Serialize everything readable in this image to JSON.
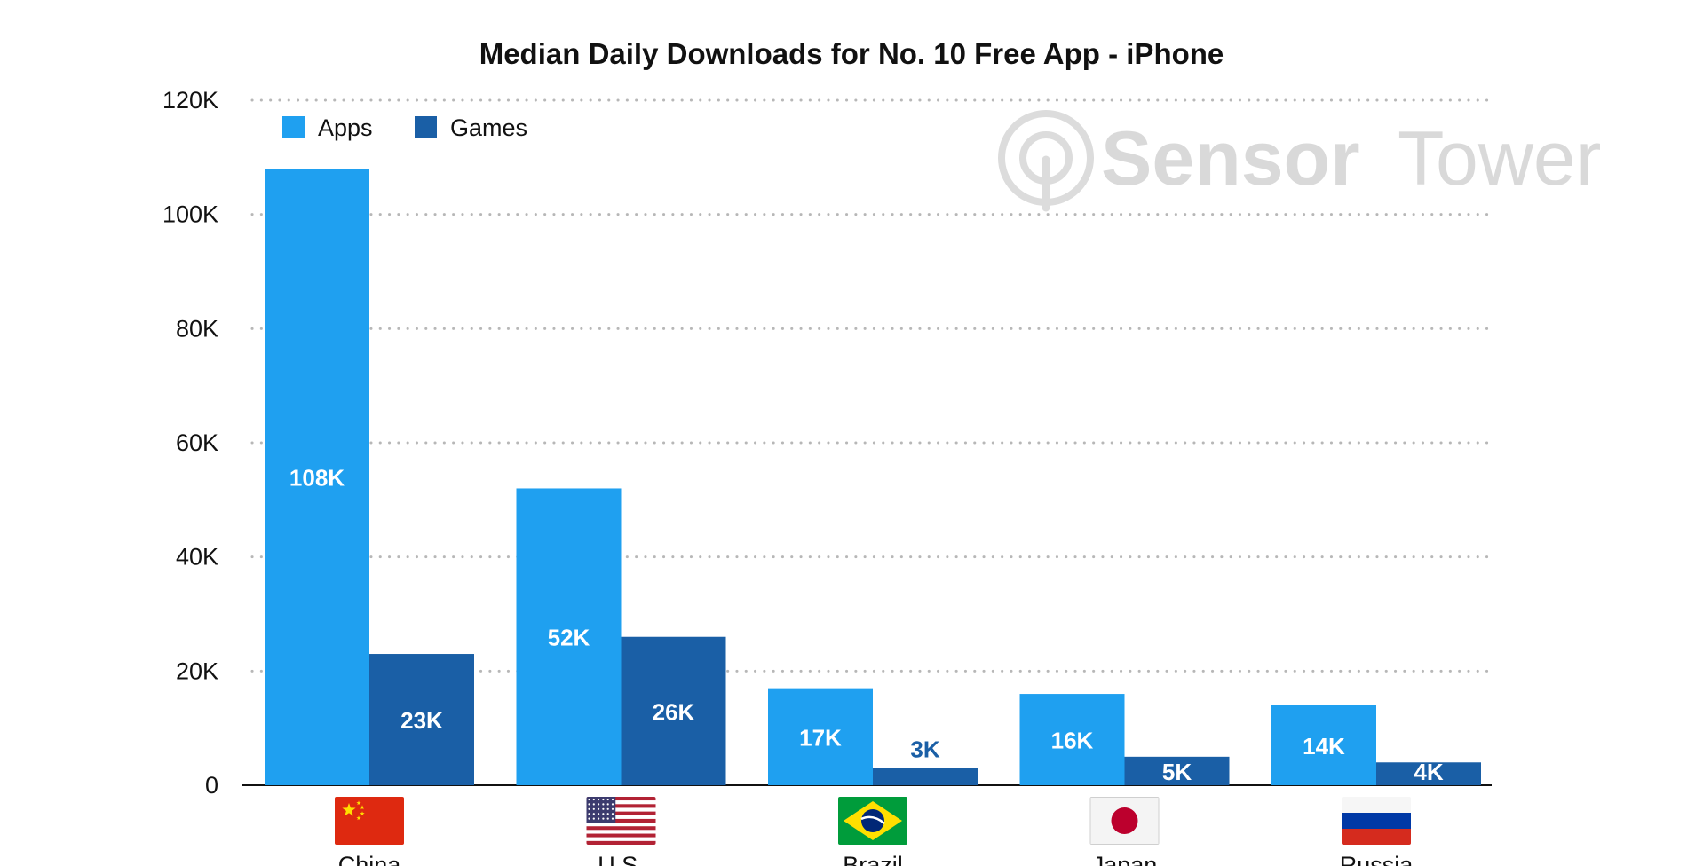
{
  "chart_data": {
    "type": "bar",
    "title": "Median Daily Downloads for No. 10 Free App - iPhone",
    "xlabel": "",
    "ylabel": "",
    "categories": [
      "China",
      "U.S.",
      "Brazil",
      "Japan",
      "Russia"
    ],
    "series": [
      {
        "name": "Apps",
        "color": "#1fa0f0",
        "values": [
          108000,
          52000,
          17000,
          16000,
          14000
        ],
        "labels": [
          "108K",
          "52K",
          "17K",
          "16K",
          "14K"
        ]
      },
      {
        "name": "Games",
        "color": "#1a5fa6",
        "values": [
          23000,
          26000,
          3000,
          5000,
          4000
        ],
        "labels": [
          "23K",
          "26K",
          "3K",
          "5K",
          "4K"
        ]
      }
    ],
    "ylim": [
      0,
      120000
    ],
    "yticks": [
      0,
      20000,
      40000,
      60000,
      80000,
      100000,
      120000
    ],
    "ytick_labels": [
      "0",
      "20K",
      "40K",
      "60K",
      "80K",
      "100K",
      "120K"
    ],
    "grid": true,
    "legend_position": "top-left",
    "flags": [
      "china-flag-icon",
      "us-flag-icon",
      "brazil-flag-icon",
      "japan-flag-icon",
      "russia-flag-icon"
    ]
  },
  "watermark": {
    "brand_first": "Sensor",
    "brand_second": "Tower"
  }
}
